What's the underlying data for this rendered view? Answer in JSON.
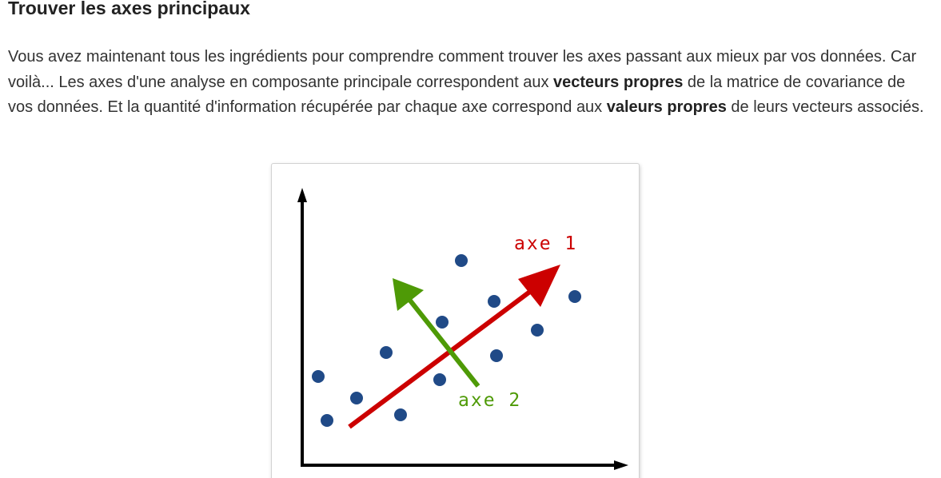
{
  "section": {
    "title": "Trouver les axes principaux"
  },
  "paragraph": {
    "part1": "Vous avez maintenant tous les ingrédients pour comprendre comment trouver les axes passant aux mieux par vos données. Car voilà... Les axes d'une analyse en composante principale correspondent aux ",
    "bold1": "vecteurs propres",
    "part2": " de la matrice de covariance de vos données. Et la quantité d'information récupérée par chaque axe correspond aux ",
    "bold2": "valeurs propres",
    "part3": " de leurs vecteurs associés."
  },
  "figure": {
    "axis1_label": "axe 1",
    "axis2_label": "axe 2",
    "colors": {
      "axis1": "#cc0000",
      "axis2": "#4e9a06",
      "points": "#204a87",
      "frame": "#000000"
    }
  }
}
